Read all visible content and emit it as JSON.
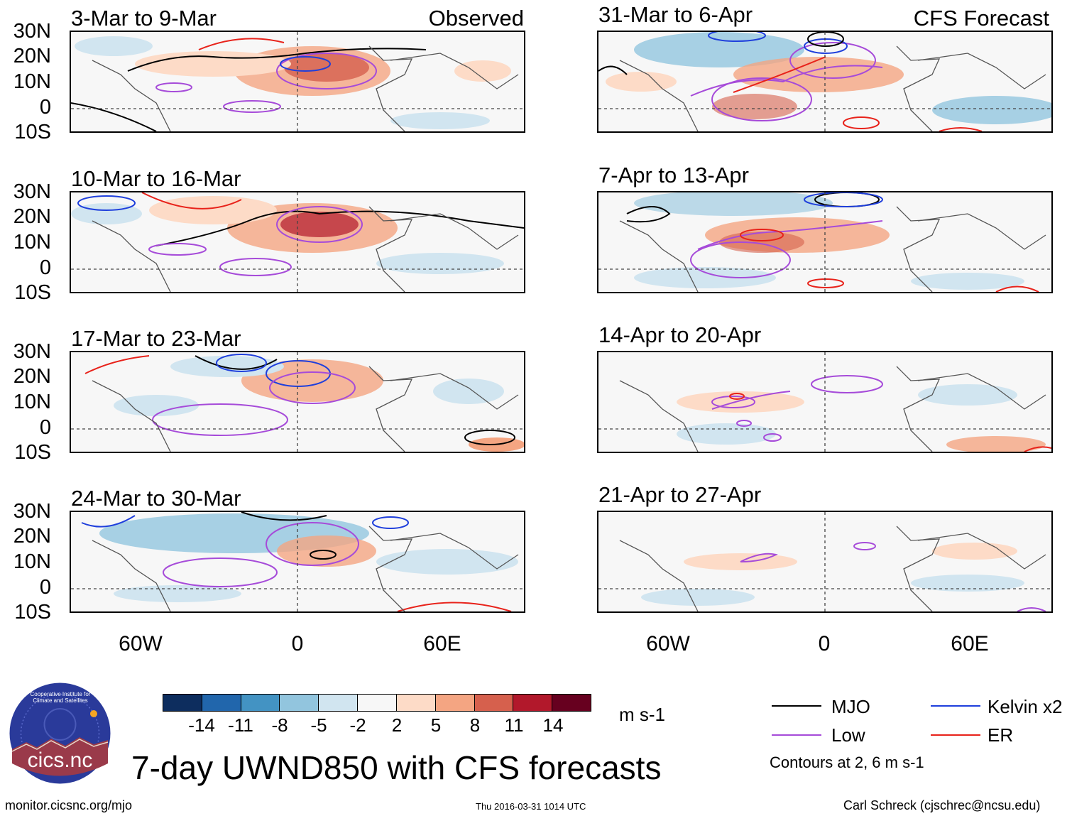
{
  "figure": {
    "title": "7-day UWND850 with CFS forecasts",
    "column_tags": [
      "Observed",
      "CFS Forecast"
    ],
    "lat_labels": [
      "30N",
      "20N",
      "10N",
      "0",
      "10S"
    ],
    "lon_labels": [
      "60W",
      "0",
      "60E"
    ]
  },
  "panels": [
    {
      "period": "3-Mar to 9-Mar",
      "tag": "Observed"
    },
    {
      "period": "10-Mar to 16-Mar",
      "tag": ""
    },
    {
      "period": "17-Mar to 23-Mar",
      "tag": ""
    },
    {
      "period": "24-Mar to 30-Mar",
      "tag": ""
    },
    {
      "period": "31-Mar to 6-Apr",
      "tag": "CFS Forecast"
    },
    {
      "period": "7-Apr to 13-Apr",
      "tag": ""
    },
    {
      "period": "14-Apr to 20-Apr",
      "tag": ""
    },
    {
      "period": "21-Apr to 27-Apr",
      "tag": ""
    }
  ],
  "colorbar": {
    "units": "m s-1",
    "tick_labels": [
      "-14",
      "-11",
      "-8",
      "-5",
      "-2",
      "2",
      "5",
      "8",
      "11",
      "14"
    ],
    "colors": [
      "#0d2d5e",
      "#2166ac",
      "#4393c3",
      "#92c5de",
      "#d1e5f0",
      "#f7f7f7",
      "#fddbc7",
      "#f4a582",
      "#d6604d",
      "#b2182b",
      "#67001f"
    ]
  },
  "legend": {
    "items": [
      {
        "label": "MJO",
        "color": "#000000"
      },
      {
        "label": "Kelvin x2",
        "color": "#1f3fdc"
      },
      {
        "label": "Low",
        "color": "#a64bd9"
      },
      {
        "label": "ER",
        "color": "#e8221a"
      }
    ],
    "note": "Contours at 2, 6 m s-1"
  },
  "logo": {
    "text": "cics.nc",
    "ring_text": "Cooperative Institute for Climate and Satellites"
  },
  "footer": {
    "left": "monitor.cicsnc.org/mjo",
    "center": "Thu 2016-03-31 1014 UTC",
    "right": "Carl Schreck (cjschrec@ncsu.edu)"
  }
}
